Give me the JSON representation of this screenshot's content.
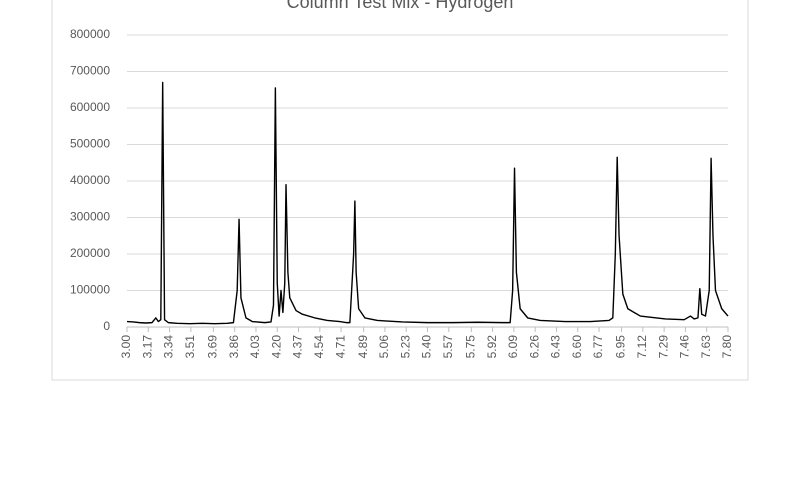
{
  "chart_data": {
    "type": "line",
    "title": "Column Test Mix - Hydrogen",
    "color": "#000000",
    "grid": true,
    "xlim": [
      3.0,
      7.8
    ],
    "ylim": [
      0,
      800000
    ],
    "yticks": [
      0,
      100000,
      200000,
      300000,
      400000,
      500000,
      600000,
      700000,
      800000
    ],
    "xticks": [
      {
        "value": 3.0,
        "label": "3.00"
      },
      {
        "value": 3.17,
        "label": "3.17"
      },
      {
        "value": 3.34,
        "label": "3.34"
      },
      {
        "value": 3.51,
        "label": "3.51"
      },
      {
        "value": 3.69,
        "label": "3.69"
      },
      {
        "value": 3.86,
        "label": "3.86"
      },
      {
        "value": 4.03,
        "label": "4.03"
      },
      {
        "value": 4.2,
        "label": "4.20"
      },
      {
        "value": 4.37,
        "label": "4.37"
      },
      {
        "value": 4.54,
        "label": "4.54"
      },
      {
        "value": 4.71,
        "label": "4.71"
      },
      {
        "value": 4.89,
        "label": "4.89"
      },
      {
        "value": 5.06,
        "label": "5.06"
      },
      {
        "value": 5.23,
        "label": "5.23"
      },
      {
        "value": 5.4,
        "label": "5.40"
      },
      {
        "value": 5.57,
        "label": "5.57"
      },
      {
        "value": 5.75,
        "label": "5.75"
      },
      {
        "value": 5.92,
        "label": "5.92"
      },
      {
        "value": 6.09,
        "label": "6.09"
      },
      {
        "value": 6.26,
        "label": "6.26"
      },
      {
        "value": 6.43,
        "label": "6.43"
      },
      {
        "value": 6.6,
        "label": "6.60"
      },
      {
        "value": 6.77,
        "label": "6.77"
      },
      {
        "value": 6.95,
        "label": "6.95"
      },
      {
        "value": 7.12,
        "label": "7.12"
      },
      {
        "value": 7.29,
        "label": "7.29"
      },
      {
        "value": 7.46,
        "label": "7.46"
      },
      {
        "value": 7.63,
        "label": "7.63"
      },
      {
        "value": 7.8,
        "label": "7.80"
      }
    ],
    "x": [
      3.0,
      3.05,
      3.1,
      3.15,
      3.2,
      3.23,
      3.25,
      3.27,
      3.285,
      3.3,
      3.33,
      3.4,
      3.5,
      3.6,
      3.7,
      3.8,
      3.85,
      3.88,
      3.895,
      3.91,
      3.95,
      4.0,
      4.1,
      4.15,
      4.17,
      4.185,
      4.2,
      4.215,
      4.23,
      4.245,
      4.26,
      4.27,
      4.285,
      4.3,
      4.35,
      4.4,
      4.5,
      4.6,
      4.7,
      4.75,
      4.78,
      4.81,
      4.82,
      4.83,
      4.85,
      4.9,
      5.0,
      5.2,
      5.4,
      5.6,
      5.8,
      6.0,
      6.06,
      6.08,
      6.095,
      6.11,
      6.14,
      6.2,
      6.3,
      6.5,
      6.7,
      6.85,
      6.88,
      6.9,
      6.915,
      6.93,
      6.96,
      7.0,
      7.1,
      7.3,
      7.45,
      7.5,
      7.53,
      7.56,
      7.575,
      7.59,
      7.62,
      7.65,
      7.665,
      7.68,
      7.7,
      7.75,
      7.8
    ],
    "values": [
      15000,
      14000,
      12000,
      11000,
      12000,
      25000,
      15000,
      20000,
      670000,
      20000,
      12000,
      10000,
      9000,
      10000,
      9000,
      10000,
      12000,
      100000,
      295000,
      80000,
      25000,
      15000,
      12000,
      14000,
      60000,
      655000,
      120000,
      30000,
      100000,
      40000,
      120000,
      390000,
      150000,
      80000,
      45000,
      35000,
      25000,
      18000,
      15000,
      12000,
      12000,
      200000,
      345000,
      150000,
      50000,
      25000,
      18000,
      14000,
      12000,
      12000,
      13000,
      12000,
      12000,
      100000,
      435000,
      150000,
      50000,
      25000,
      18000,
      15000,
      15000,
      18000,
      25000,
      200000,
      465000,
      250000,
      90000,
      50000,
      30000,
      22000,
      20000,
      30000,
      22000,
      25000,
      105000,
      35000,
      30000,
      100000,
      462000,
      250000,
      100000,
      50000,
      30000
    ]
  }
}
